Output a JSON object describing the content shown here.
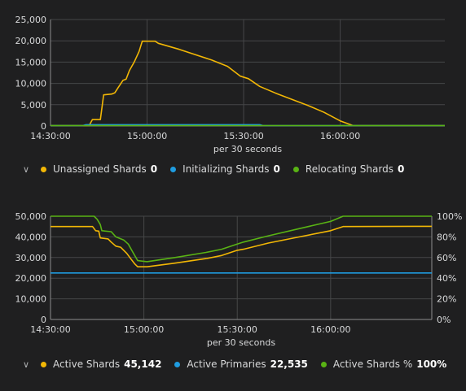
{
  "charts": [
    {
      "id": "shards-status",
      "xlabel": "per 30 seconds",
      "legend": [
        {
          "label": "Unassigned Shards",
          "value": "0",
          "color": "#f2b705"
        },
        {
          "label": "Initializing Shards",
          "value": "0",
          "color": "#1f9ce0"
        },
        {
          "label": "Relocating Shards",
          "value": "0",
          "color": "#59b314"
        }
      ]
    },
    {
      "id": "active-shards",
      "xlabel": "per 30 seconds",
      "legend": [
        {
          "label": "Active Shards",
          "value": "45,142",
          "color": "#f2b705"
        },
        {
          "label": "Active Primaries",
          "value": "22,535",
          "color": "#1f9ce0"
        },
        {
          "label": "Active Shards %",
          "value": "100%",
          "color": "#59b314"
        }
      ]
    }
  ],
  "chart_data": [
    {
      "type": "line",
      "xlabel": "per 30 seconds",
      "x_range": [
        "14:30:00",
        "16:32:30"
      ],
      "x_ticks": [
        "14:30:00",
        "15:00:00",
        "15:30:00",
        "16:00:00"
      ],
      "ylim": [
        0,
        25000
      ],
      "y_ticks": [
        "0",
        "5,000",
        "10,000",
        "15,000",
        "20,000",
        "25,000"
      ],
      "grid": true,
      "legend_position": "bottom",
      "series": [
        {
          "name": "Unassigned Shards",
          "color": "#f2b705",
          "points": [
            [
              "14:30:00",
              0
            ],
            [
              "14:42:00",
              0
            ],
            [
              "14:43:00",
              1500
            ],
            [
              "14:45:30",
              1500
            ],
            [
              "14:46:30",
              7300
            ],
            [
              "14:49:00",
              7500
            ],
            [
              "14:50:00",
              7800
            ],
            [
              "14:51:00",
              9000
            ],
            [
              "14:52:30",
              10700
            ],
            [
              "14:53:30",
              11000
            ],
            [
              "14:54:30",
              13000
            ],
            [
              "14:56:00",
              15000
            ],
            [
              "14:57:30",
              17500
            ],
            [
              "14:58:30",
              19900
            ],
            [
              "15:02:30",
              19900
            ],
            [
              "15:03:30",
              19400
            ],
            [
              "15:10:00",
              18000
            ],
            [
              "15:20:00",
              15500
            ],
            [
              "15:25:00",
              14000
            ],
            [
              "15:29:00",
              11700
            ],
            [
              "15:31:30",
              11100
            ],
            [
              "15:35:00",
              9300
            ],
            [
              "15:40:00",
              7700
            ],
            [
              "15:50:00",
              4800
            ],
            [
              "15:55:00",
              3200
            ],
            [
              "16:00:00",
              1200
            ],
            [
              "16:04:00",
              0
            ],
            [
              "16:32:30",
              0
            ]
          ]
        },
        {
          "name": "Initializing Shards",
          "color": "#1f9ce0",
          "points": [
            [
              "14:30:00",
              0
            ],
            [
              "14:40:00",
              0
            ],
            [
              "14:41:00",
              300
            ],
            [
              "15:35:00",
              300
            ],
            [
              "15:36:00",
              0
            ],
            [
              "16:32:30",
              0
            ]
          ]
        },
        {
          "name": "Relocating Shards",
          "color": "#59b314",
          "points": [
            [
              "14:30:00",
              0
            ],
            [
              "16:32:30",
              0
            ]
          ]
        }
      ]
    },
    {
      "type": "line",
      "xlabel": "per 30 seconds",
      "x_range": [
        "14:30:00",
        "16:32:30"
      ],
      "x_ticks": [
        "14:30:00",
        "15:00:00",
        "15:30:00",
        "16:00:00"
      ],
      "ylim": [
        0,
        50000
      ],
      "y_ticks": [
        "0",
        "10,000",
        "20,000",
        "30,000",
        "40,000",
        "50,000"
      ],
      "y2lim": [
        0,
        100
      ],
      "y2_ticks": [
        "0%",
        "20%",
        "40%",
        "60%",
        "80%",
        "100%"
      ],
      "grid": true,
      "legend_position": "bottom",
      "series": [
        {
          "name": "Active Shards",
          "color": "#f2b705",
          "axis": "left",
          "points": [
            [
              "14:30:00",
              45000
            ],
            [
              "14:43:30",
              45000
            ],
            [
              "14:44:30",
              43000
            ],
            [
              "14:45:30",
              42800
            ],
            [
              "14:46:00",
              39500
            ],
            [
              "14:48:30",
              39000
            ],
            [
              "14:49:30",
              37500
            ],
            [
              "14:51:00",
              35500
            ],
            [
              "14:52:30",
              35000
            ],
            [
              "14:54:30",
              32000
            ],
            [
              "14:56:00",
              29000
            ],
            [
              "14:57:00",
              27000
            ],
            [
              "14:58:00",
              25500
            ],
            [
              "15:01:00",
              25500
            ],
            [
              "15:10:00",
              27300
            ],
            [
              "15:20:00",
              29500
            ],
            [
              "15:25:00",
              31000
            ],
            [
              "15:30:00",
              33500
            ],
            [
              "15:32:00",
              34000
            ],
            [
              "15:40:00",
              37000
            ],
            [
              "15:50:00",
              40000
            ],
            [
              "16:00:00",
              43000
            ],
            [
              "16:04:00",
              45000
            ],
            [
              "16:32:30",
              45100
            ]
          ]
        },
        {
          "name": "Active Primaries",
          "color": "#1f9ce0",
          "axis": "left",
          "points": [
            [
              "14:30:00",
              22500
            ],
            [
              "16:32:30",
              22500
            ]
          ]
        },
        {
          "name": "Active Shards %",
          "color": "#59b314",
          "axis": "right",
          "points": [
            [
              "14:30:00",
              100
            ],
            [
              "14:44:00",
              100
            ],
            [
              "14:45:00",
              97
            ],
            [
              "14:46:00",
              92
            ],
            [
              "14:46:30",
              86
            ],
            [
              "14:49:30",
              85
            ],
            [
              "14:51:00",
              80
            ],
            [
              "14:53:30",
              77
            ],
            [
              "14:55:00",
              73
            ],
            [
              "14:56:30",
              65
            ],
            [
              "14:58:00",
              57
            ],
            [
              "15:01:00",
              56
            ],
            [
              "15:10:00",
              60
            ],
            [
              "15:20:00",
              65
            ],
            [
              "15:25:00",
              68
            ],
            [
              "15:30:00",
              73
            ],
            [
              "15:32:00",
              75
            ],
            [
              "15:40:00",
              81
            ],
            [
              "15:50:00",
              88
            ],
            [
              "16:00:00",
              95
            ],
            [
              "16:04:00",
              100
            ],
            [
              "16:32:30",
              100
            ]
          ]
        }
      ]
    }
  ]
}
